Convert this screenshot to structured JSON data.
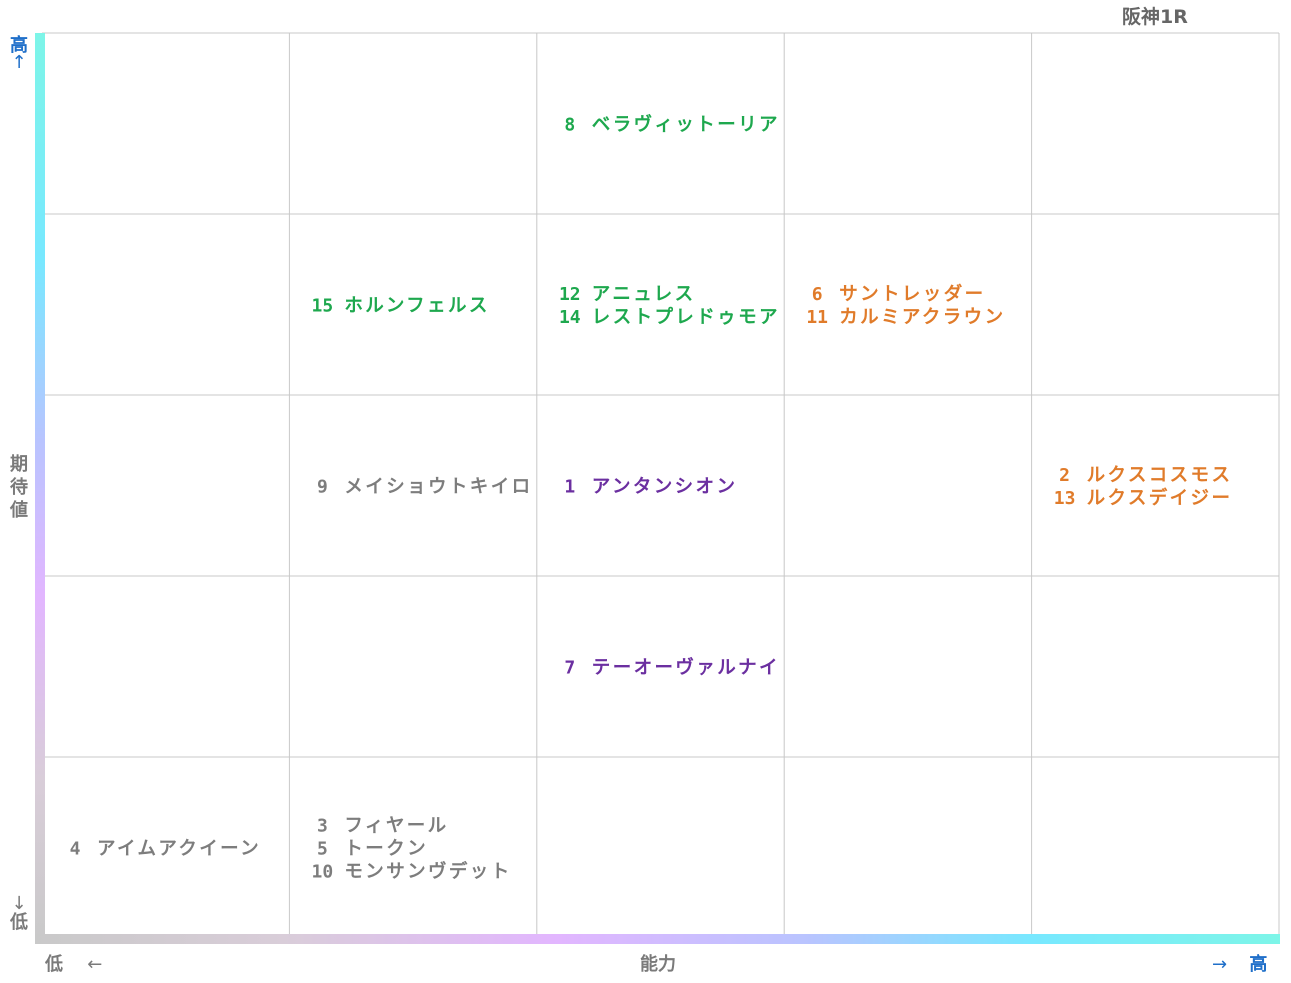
{
  "header": {
    "race_title": "阪神1R"
  },
  "axes": {
    "y_label": "期待値",
    "y_high": "高",
    "y_low": "低",
    "x_label": "能力",
    "x_low": "低",
    "x_high": "高",
    "up_arrow": "↑",
    "down_arrow": "↓",
    "left_arrow": "←",
    "right_arrow": "→"
  },
  "chart_data": {
    "type": "table",
    "columns": 5,
    "rows": 5,
    "row_order": "top=highest 期待値",
    "col_order": "left=lowest 能力",
    "colors": {
      "green": "#1ea84e",
      "orange": "#e07b2a",
      "purple": "#6b2fa0",
      "gray": "#7d7d7d"
    },
    "cells": [
      {
        "row": 0,
        "col": 2,
        "color": "green",
        "entries": [
          {
            "num": "8",
            "name": "ベラヴィットーリア"
          }
        ]
      },
      {
        "row": 1,
        "col": 1,
        "color": "green",
        "entries": [
          {
            "num": "15",
            "name": "ホルンフェルス"
          }
        ]
      },
      {
        "row": 1,
        "col": 2,
        "color": "green",
        "entries": [
          {
            "num": "12",
            "name": "アニュレス"
          },
          {
            "num": "14",
            "name": "レストプレドゥモア"
          }
        ]
      },
      {
        "row": 1,
        "col": 3,
        "color": "orange",
        "entries": [
          {
            "num": "6",
            "name": "サントレッダー"
          },
          {
            "num": "11",
            "name": "カルミアクラウン"
          }
        ]
      },
      {
        "row": 2,
        "col": 1,
        "color": "gray",
        "entries": [
          {
            "num": "9",
            "name": "メイショウトキイロ"
          }
        ]
      },
      {
        "row": 2,
        "col": 2,
        "color": "purple",
        "entries": [
          {
            "num": "1",
            "name": "アンタンシオン"
          }
        ]
      },
      {
        "row": 2,
        "col": 4,
        "color": "orange",
        "entries": [
          {
            "num": "2",
            "name": "ルクスコスモス"
          },
          {
            "num": "13",
            "name": "ルクスデイジー"
          }
        ]
      },
      {
        "row": 3,
        "col": 2,
        "color": "purple",
        "entries": [
          {
            "num": "7",
            "name": "テーオーヴァルナイ"
          }
        ]
      },
      {
        "row": 4,
        "col": 0,
        "color": "gray",
        "entries": [
          {
            "num": "4",
            "name": "アイムアクイーン"
          }
        ]
      },
      {
        "row": 4,
        "col": 1,
        "color": "gray",
        "entries": [
          {
            "num": "3",
            "name": "フィヤール"
          },
          {
            "num": "5",
            "name": "トークン"
          },
          {
            "num": "10",
            "name": "モンサンヴデット"
          }
        ]
      }
    ]
  }
}
